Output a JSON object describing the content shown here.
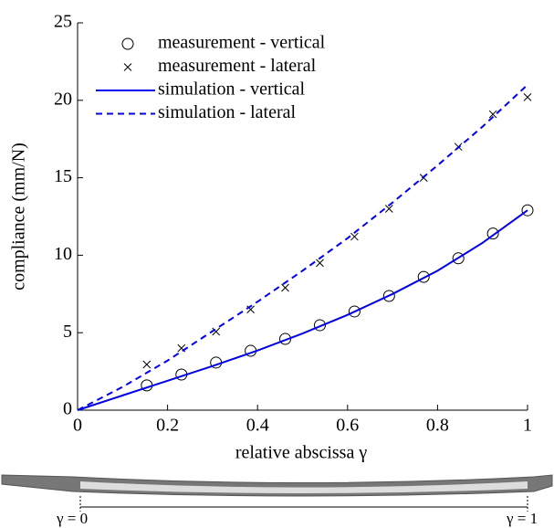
{
  "chart_data": {
    "type": "line",
    "xlabel": "relative abscissa γ",
    "ylabel": "compliance (mm/N)",
    "xlim": [
      0,
      1
    ],
    "xticks": [
      0,
      0.2,
      0.4,
      0.6,
      0.8,
      1
    ],
    "ylim": [
      0,
      25
    ],
    "yticks": [
      0,
      5,
      10,
      15,
      20,
      25
    ],
    "legend": "upper left",
    "series": [
      {
        "name": "measurement - vertical",
        "kind": "scatter",
        "marker": "circle",
        "color": "#000000",
        "x": [
          0.1538,
          0.2308,
          0.3077,
          0.3846,
          0.4615,
          0.5385,
          0.6154,
          0.6923,
          0.7692,
          0.8462,
          0.9231,
          1
        ],
        "values": [
          1.6,
          2.3,
          3.07,
          3.83,
          4.6,
          5.48,
          6.37,
          7.37,
          8.6,
          9.8,
          11.4,
          12.9
        ]
      },
      {
        "name": "measurement - lateral",
        "kind": "scatter",
        "marker": "cross",
        "color": "#000000",
        "x": [
          0.1538,
          0.2308,
          0.3077,
          0.3846,
          0.4615,
          0.5385,
          0.6154,
          0.6923,
          0.7692,
          0.8462,
          0.9231,
          1
        ],
        "values": [
          2.95,
          4.0,
          5.07,
          6.5,
          7.9,
          9.5,
          11.2,
          13.0,
          15.0,
          17.0,
          19.1,
          20.2
        ]
      },
      {
        "name": "simulation - vertical",
        "kind": "line",
        "dash": "solid",
        "color": "#0000ee",
        "x": [
          0,
          0.1,
          0.2,
          0.3,
          0.4,
          0.5,
          0.6,
          0.7,
          0.8,
          0.9,
          1
        ],
        "values": [
          0,
          0.95,
          1.9,
          2.85,
          3.85,
          4.95,
          6.15,
          7.5,
          9.0,
          10.8,
          12.9
        ]
      },
      {
        "name": "simulation - lateral",
        "kind": "line",
        "dash": "dashed",
        "color": "#0000ee",
        "x": [
          0,
          0.1,
          0.2,
          0.3,
          0.4,
          0.5,
          0.6,
          0.7,
          0.8,
          0.9,
          1
        ],
        "values": [
          0,
          1.5,
          3.2,
          5.1,
          7.0,
          9.0,
          11.1,
          13.4,
          15.8,
          18.3,
          21.0
        ]
      }
    ]
  },
  "diagram": {
    "left_label": "γ = 0",
    "right_label": "γ = 1"
  }
}
